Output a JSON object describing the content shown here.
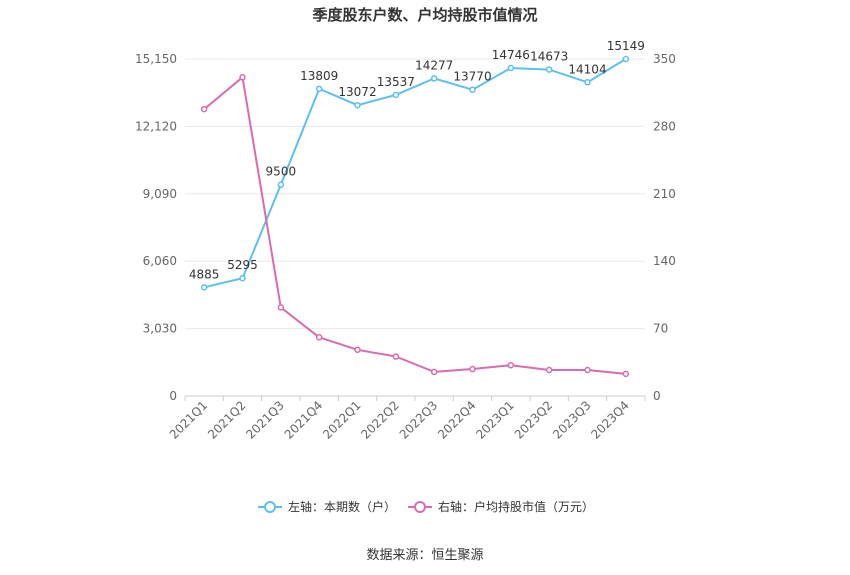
{
  "chart_data": {
    "type": "line",
    "title": "季度股东户数、户均持股市值情况",
    "categories": [
      "2021Q1",
      "2021Q2",
      "2021Q3",
      "2021Q4",
      "2022Q1",
      "2022Q2",
      "2022Q3",
      "2022Q4",
      "2023Q1",
      "2023Q2",
      "2023Q3",
      "2023Q4"
    ],
    "left_axis": {
      "ticks": [
        "0",
        "3,030",
        "6,060",
        "9,090",
        "12,120",
        "15,150"
      ],
      "range": [
        0,
        15150
      ]
    },
    "right_axis": {
      "ticks": [
        "0",
        "70",
        "140",
        "210",
        "280",
        "350"
      ],
      "range": [
        0,
        350
      ]
    },
    "grid": true,
    "legend_position": "bottom",
    "series": [
      {
        "name": "左轴：本期数（户）",
        "axis": "left",
        "color": "#5bc0f0",
        "values": [
          4885,
          5295,
          9500,
          13809,
          13072,
          13537,
          14277,
          13770,
          14746,
          14673,
          14104,
          15149
        ],
        "labels": [
          "4885",
          "5295",
          "9500",
          "13809",
          "13072",
          "13537",
          "14277",
          "13770",
          "14746",
          "14673",
          "14104",
          "15149"
        ]
      },
      {
        "name": "右轴：户均持股市值（万元）",
        "axis": "right",
        "color": "#d96bb0",
        "values": [
          298,
          331,
          92,
          61,
          48,
          41,
          25,
          28,
          32,
          27,
          27,
          23
        ]
      }
    ],
    "source": "数据来源：恒生聚源"
  }
}
